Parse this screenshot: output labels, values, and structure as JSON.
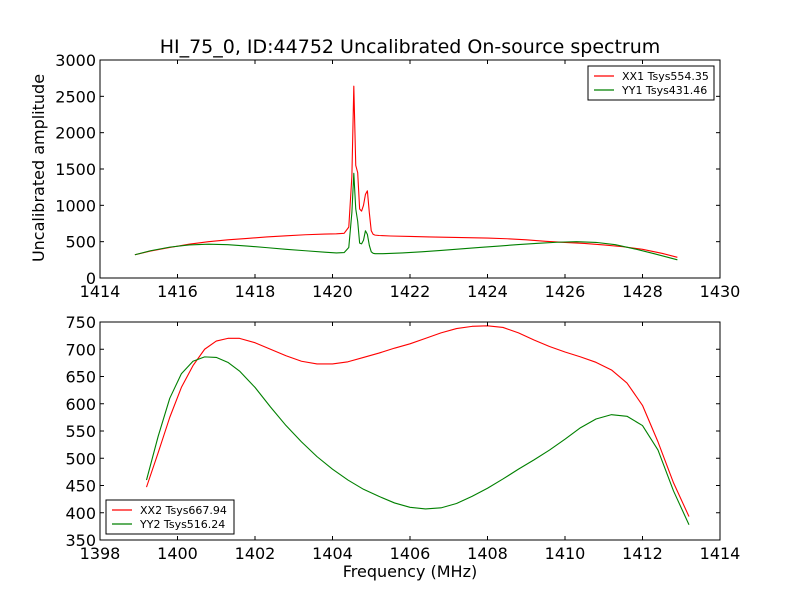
{
  "chart_data": [
    {
      "type": "line",
      "title": "HI_75_0, ID:44752 Uncalibrated On-source spectrum",
      "xlabel": "",
      "ylabel": "Uncalibrated amplitude",
      "xlim": [
        1414,
        1430
      ],
      "ylim": [
        0,
        3000
      ],
      "xticks": [
        1414,
        1416,
        1418,
        1420,
        1422,
        1424,
        1426,
        1428,
        1430
      ],
      "yticks": [
        0,
        500,
        1000,
        1500,
        2000,
        2500,
        3000
      ],
      "legend_position": "top-right",
      "series": [
        {
          "name": "XX1 Tsys554.35",
          "color": "#ff0000",
          "x": [
            1414.9,
            1415.3,
            1415.8,
            1416.3,
            1416.8,
            1417.3,
            1417.8,
            1418.3,
            1418.8,
            1419.3,
            1419.8,
            1420.1,
            1420.3,
            1420.42,
            1420.5,
            1420.55,
            1420.6,
            1420.65,
            1420.7,
            1420.75,
            1420.8,
            1420.85,
            1420.9,
            1420.95,
            1421.0,
            1421.05,
            1421.1,
            1421.2,
            1421.5,
            1422.0,
            1422.5,
            1423.0,
            1423.5,
            1424.0,
            1424.5,
            1425.0,
            1425.5,
            1426.0,
            1426.5,
            1427.0,
            1427.5,
            1428.0,
            1428.5,
            1428.9
          ],
          "y": [
            320,
            370,
            420,
            465,
            500,
            525,
            545,
            565,
            580,
            595,
            605,
            608,
            615,
            700,
            1400,
            2640,
            1550,
            1450,
            950,
            920,
            1000,
            1150,
            1200,
            900,
            650,
            600,
            590,
            585,
            578,
            572,
            565,
            560,
            555,
            550,
            540,
            525,
            505,
            490,
            475,
            455,
            430,
            395,
            340,
            285
          ]
        },
        {
          "name": "YY1 Tsys431.46",
          "color": "#008000",
          "x": [
            1414.9,
            1415.3,
            1415.8,
            1416.3,
            1416.8,
            1417.3,
            1417.8,
            1418.3,
            1418.8,
            1419.3,
            1419.8,
            1420.1,
            1420.3,
            1420.42,
            1420.5,
            1420.55,
            1420.6,
            1420.65,
            1420.7,
            1420.75,
            1420.8,
            1420.85,
            1420.9,
            1420.95,
            1421.0,
            1421.05,
            1421.1,
            1421.3,
            1421.8,
            1422.3,
            1422.8,
            1423.3,
            1423.8,
            1424.3,
            1424.8,
            1425.3,
            1425.8,
            1426.3,
            1426.8,
            1427.3,
            1427.8,
            1428.3,
            1428.9
          ],
          "y": [
            320,
            375,
            425,
            455,
            465,
            458,
            440,
            418,
            395,
            375,
            355,
            345,
            350,
            420,
            900,
            1440,
            950,
            780,
            480,
            470,
            520,
            650,
            600,
            450,
            360,
            340,
            335,
            335,
            345,
            360,
            380,
            400,
            420,
            440,
            460,
            478,
            492,
            500,
            490,
            458,
            400,
            335,
            250
          ]
        }
      ]
    },
    {
      "type": "line",
      "title": "",
      "xlabel": "Frequency (MHz)",
      "ylabel": "",
      "xlim": [
        1398,
        1414
      ],
      "ylim": [
        350,
        750
      ],
      "xticks": [
        1398,
        1400,
        1402,
        1404,
        1406,
        1408,
        1410,
        1412,
        1414
      ],
      "yticks": [
        350,
        400,
        450,
        500,
        550,
        600,
        650,
        700,
        750
      ],
      "legend_position": "bottom-left",
      "series": [
        {
          "name": "XX2 Tsys667.94",
          "color": "#ff0000",
          "x": [
            1399.2,
            1399.5,
            1399.8,
            1400.1,
            1400.4,
            1400.7,
            1401.0,
            1401.3,
            1401.6,
            1402.0,
            1402.4,
            1402.8,
            1403.2,
            1403.6,
            1404.0,
            1404.4,
            1404.8,
            1405.2,
            1405.6,
            1406.0,
            1406.4,
            1406.8,
            1407.2,
            1407.6,
            1408.0,
            1408.4,
            1408.8,
            1409.2,
            1409.6,
            1410.0,
            1410.4,
            1410.8,
            1411.2,
            1411.6,
            1412.0,
            1412.4,
            1412.8,
            1413.2
          ],
          "y": [
            447,
            510,
            575,
            630,
            670,
            700,
            715,
            720,
            720,
            712,
            700,
            688,
            678,
            673,
            673,
            677,
            685,
            693,
            702,
            710,
            720,
            730,
            738,
            742,
            743,
            740,
            730,
            717,
            705,
            695,
            686,
            676,
            662,
            638,
            597,
            530,
            455,
            393
          ]
        },
        {
          "name": "YY2 Tsys516.24",
          "color": "#008000",
          "x": [
            1399.2,
            1399.5,
            1399.8,
            1400.1,
            1400.4,
            1400.7,
            1401.0,
            1401.3,
            1401.6,
            1402.0,
            1402.4,
            1402.8,
            1403.2,
            1403.6,
            1404.0,
            1404.4,
            1404.8,
            1405.2,
            1405.6,
            1406.0,
            1406.4,
            1406.8,
            1407.2,
            1407.6,
            1408.0,
            1408.4,
            1408.8,
            1409.2,
            1409.6,
            1410.0,
            1410.4,
            1410.8,
            1411.2,
            1411.6,
            1412.0,
            1412.4,
            1412.8,
            1413.2
          ],
          "y": [
            460,
            540,
            610,
            655,
            678,
            686,
            685,
            676,
            660,
            630,
            594,
            560,
            530,
            503,
            480,
            460,
            443,
            430,
            418,
            410,
            407,
            409,
            417,
            430,
            445,
            462,
            480,
            497,
            515,
            535,
            556,
            572,
            580,
            577,
            560,
            515,
            440,
            378
          ]
        }
      ]
    }
  ]
}
